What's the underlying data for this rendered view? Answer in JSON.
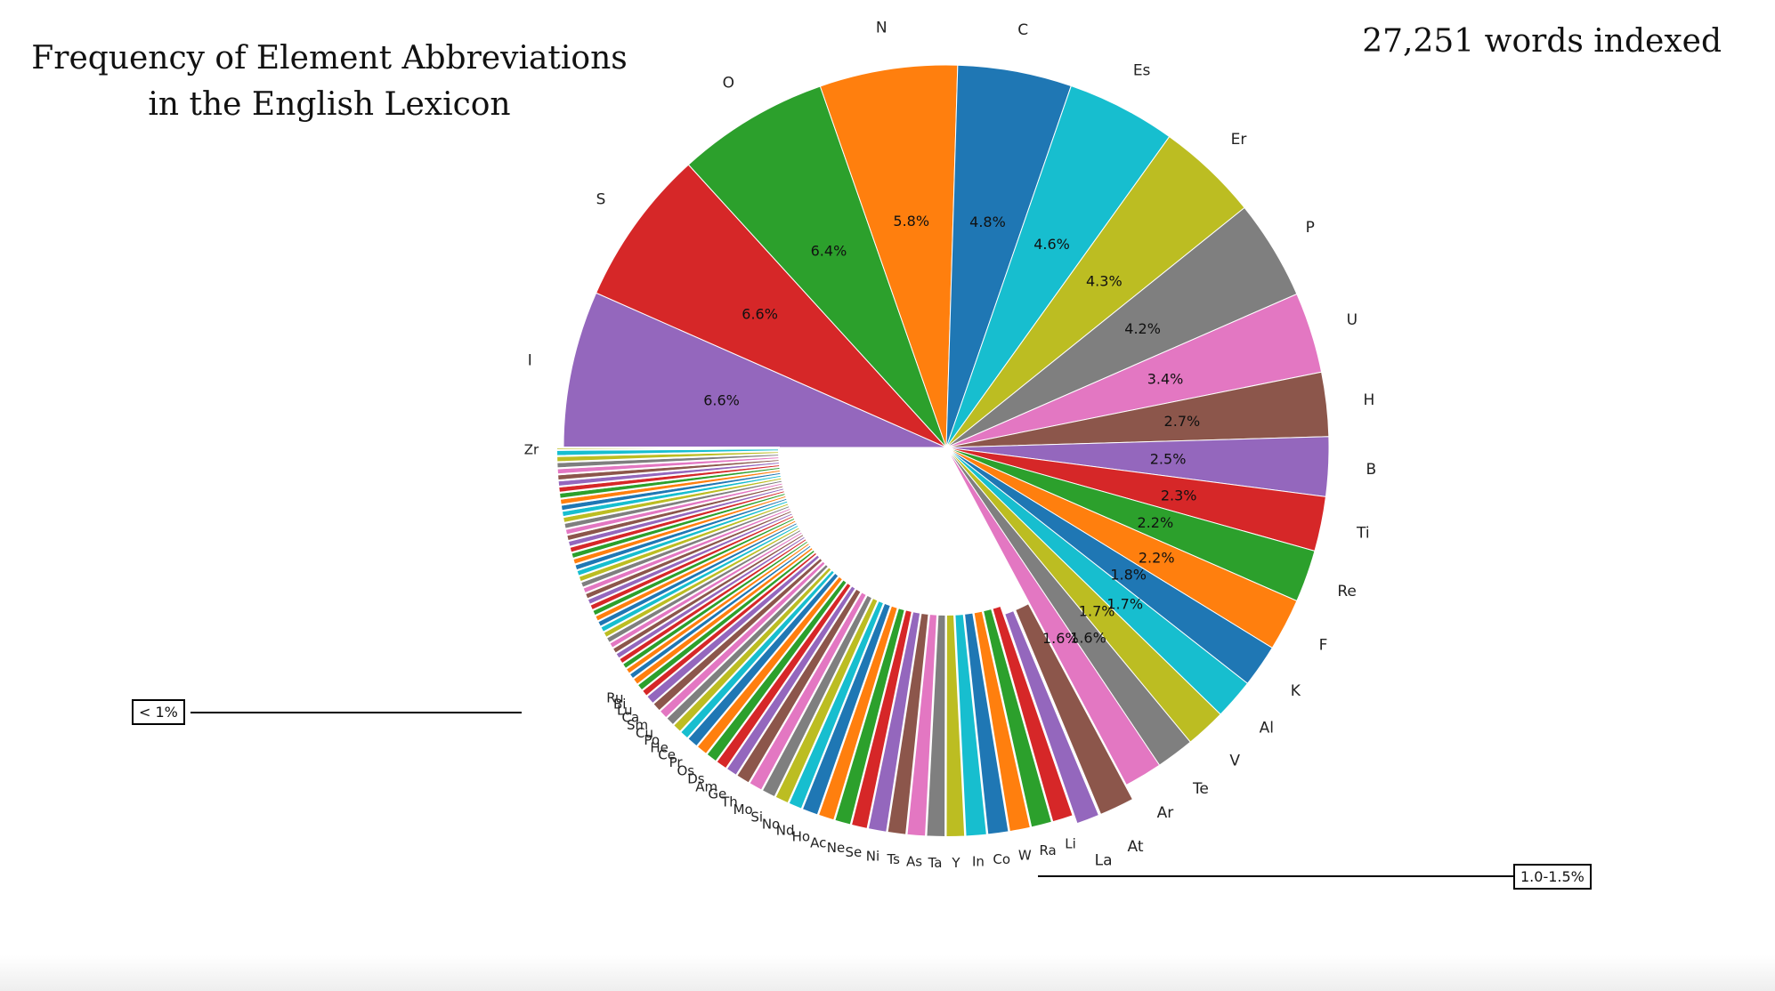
{
  "header": {
    "title_line1": "Frequency of Element Abbreviations",
    "title_line2": "in the English Lexicon",
    "words_indexed": "27,251 words indexed"
  },
  "callouts": {
    "small": "< 1%",
    "mid": "1.0-1.5%"
  },
  "palette": [
    "#1f77b4",
    "#ff7f0e",
    "#2ca02c",
    "#d62728",
    "#9467bd",
    "#8c564b",
    "#e377c2",
    "#7f7f7f",
    "#bcbd22",
    "#17becf"
  ],
  "chart_data": {
    "type": "pie",
    "unit": "percent",
    "slices": [
      {
        "label": "I",
        "value": 6.6,
        "pct_label": "6.6%",
        "color": "#9467bd"
      },
      {
        "label": "S",
        "value": 6.6,
        "pct_label": "6.6%",
        "color": "#d62728"
      },
      {
        "label": "O",
        "value": 6.4,
        "pct_label": "6.4%",
        "color": "#2ca02c"
      },
      {
        "label": "N",
        "value": 5.8,
        "pct_label": "5.8%",
        "color": "#ff7f0e"
      },
      {
        "label": "C",
        "value": 4.8,
        "pct_label": "4.8%",
        "color": "#1f77b4"
      },
      {
        "label": "Es",
        "value": 4.6,
        "pct_label": "4.6%",
        "color": "#17becf"
      },
      {
        "label": "Er",
        "value": 4.3,
        "pct_label": "4.3%",
        "color": "#bcbd22"
      },
      {
        "label": "P",
        "value": 4.2,
        "pct_label": "4.2%",
        "color": "#7f7f7f"
      },
      {
        "label": "U",
        "value": 3.4,
        "pct_label": "3.4%",
        "color": "#e377c2"
      },
      {
        "label": "H",
        "value": 2.7,
        "pct_label": "2.7%",
        "color": "#8c564b"
      },
      {
        "label": "B",
        "value": 2.5,
        "pct_label": "2.5%",
        "color": "#9467bd"
      },
      {
        "label": "Ti",
        "value": 2.3,
        "pct_label": "2.3%",
        "color": "#d62728"
      },
      {
        "label": "Re",
        "value": 2.2,
        "pct_label": "2.2%",
        "color": "#2ca02c"
      },
      {
        "label": "F",
        "value": 2.2,
        "pct_label": "2.2%",
        "color": "#ff7f0e"
      },
      {
        "label": "K",
        "value": 1.8,
        "pct_label": "1.8%",
        "color": "#1f77b4"
      },
      {
        "label": "Al",
        "value": 1.7,
        "pct_label": "1.7%",
        "color": "#17becf"
      },
      {
        "label": "V",
        "value": 1.7,
        "pct_label": "1.7%",
        "color": "#bcbd22"
      },
      {
        "label": "Te",
        "value": 1.6,
        "pct_label": "1.6%",
        "color": "#7f7f7f"
      },
      {
        "label": "Ar",
        "value": 1.6,
        "pct_label": "1.6%",
        "color": "#e377c2"
      },
      {
        "label": "At",
        "value": 1.5,
        "pct_label": "",
        "color": "#8c564b"
      },
      {
        "label": "La",
        "value": 1.0,
        "pct_label": "",
        "color": "#9467bd"
      },
      {
        "label": "Li",
        "value": 0.9,
        "pct_label": "",
        "color": "#d62728"
      },
      {
        "label": "Ra",
        "value": 0.9,
        "pct_label": "",
        "color": "#2ca02c"
      },
      {
        "label": "W",
        "value": 0.9,
        "pct_label": "",
        "color": "#ff7f0e"
      },
      {
        "label": "Co",
        "value": 0.9,
        "pct_label": "",
        "color": "#1f77b4"
      },
      {
        "label": "In",
        "value": 0.9,
        "pct_label": "",
        "color": "#17becf"
      },
      {
        "label": "Y",
        "value": 0.8,
        "pct_label": "",
        "color": "#bcbd22"
      },
      {
        "label": "Ta",
        "value": 0.8,
        "pct_label": "",
        "color": "#7f7f7f"
      },
      {
        "label": "As",
        "value": 0.8,
        "pct_label": "",
        "color": "#e377c2"
      },
      {
        "label": "Ts",
        "value": 0.8,
        "pct_label": "",
        "color": "#8c564b"
      },
      {
        "label": "Ni",
        "value": 0.8,
        "pct_label": "",
        "color": "#9467bd"
      },
      {
        "label": "Se",
        "value": 0.7,
        "pct_label": "",
        "color": "#d62728"
      },
      {
        "label": "Ne",
        "value": 0.7,
        "pct_label": "",
        "color": "#2ca02c"
      },
      {
        "label": "Ac",
        "value": 0.7,
        "pct_label": "",
        "color": "#ff7f0e"
      },
      {
        "label": "Ho",
        "value": 0.7,
        "pct_label": "",
        "color": "#1f77b4"
      },
      {
        "label": "Nd",
        "value": 0.6,
        "pct_label": "",
        "color": "#17becf"
      },
      {
        "label": "No",
        "value": 0.6,
        "pct_label": "",
        "color": "#bcbd22"
      },
      {
        "label": "Si",
        "value": 0.6,
        "pct_label": "",
        "color": "#7f7f7f"
      },
      {
        "label": "Mo",
        "value": 0.6,
        "pct_label": "",
        "color": "#e377c2"
      },
      {
        "label": "Th",
        "value": 0.6,
        "pct_label": "",
        "color": "#8c564b"
      },
      {
        "label": "Ge",
        "value": 0.5,
        "pct_label": "",
        "color": "#9467bd"
      },
      {
        "label": "Am",
        "value": 0.5,
        "pct_label": "",
        "color": "#d62728"
      },
      {
        "label": "Ds",
        "value": 0.5,
        "pct_label": "",
        "color": "#2ca02c"
      },
      {
        "label": "Os",
        "value": 0.5,
        "pct_label": "",
        "color": "#ff7f0e"
      },
      {
        "label": "Pr",
        "value": 0.5,
        "pct_label": "",
        "color": "#1f77b4"
      },
      {
        "label": "Ce",
        "value": 0.4,
        "pct_label": "",
        "color": "#17becf"
      },
      {
        "label": "He",
        "value": 0.4,
        "pct_label": "",
        "color": "#bcbd22"
      },
      {
        "label": "Po",
        "value": 0.4,
        "pct_label": "",
        "color": "#7f7f7f"
      },
      {
        "label": "Cu",
        "value": 0.4,
        "pct_label": "",
        "color": "#e377c2"
      },
      {
        "label": "Sm",
        "value": 0.4,
        "pct_label": "",
        "color": "#8c564b"
      },
      {
        "label": "Ca",
        "value": 0.4,
        "pct_label": "",
        "color": "#9467bd"
      },
      {
        "label": "Lu",
        "value": 0.3,
        "pct_label": "",
        "color": "#d62728"
      },
      {
        "label": "Bi",
        "value": 0.3,
        "pct_label": "",
        "color": "#2ca02c"
      },
      {
        "label": "Ru",
        "value": 0.3,
        "pct_label": "",
        "color": "#ff7f0e"
      },
      {
        "label": "Zr",
        "value": 0.1,
        "pct_label": "",
        "color": "#bcbd22"
      }
    ],
    "unlabeled_tail": {
      "count": 40,
      "value_each": 0.25
    }
  }
}
